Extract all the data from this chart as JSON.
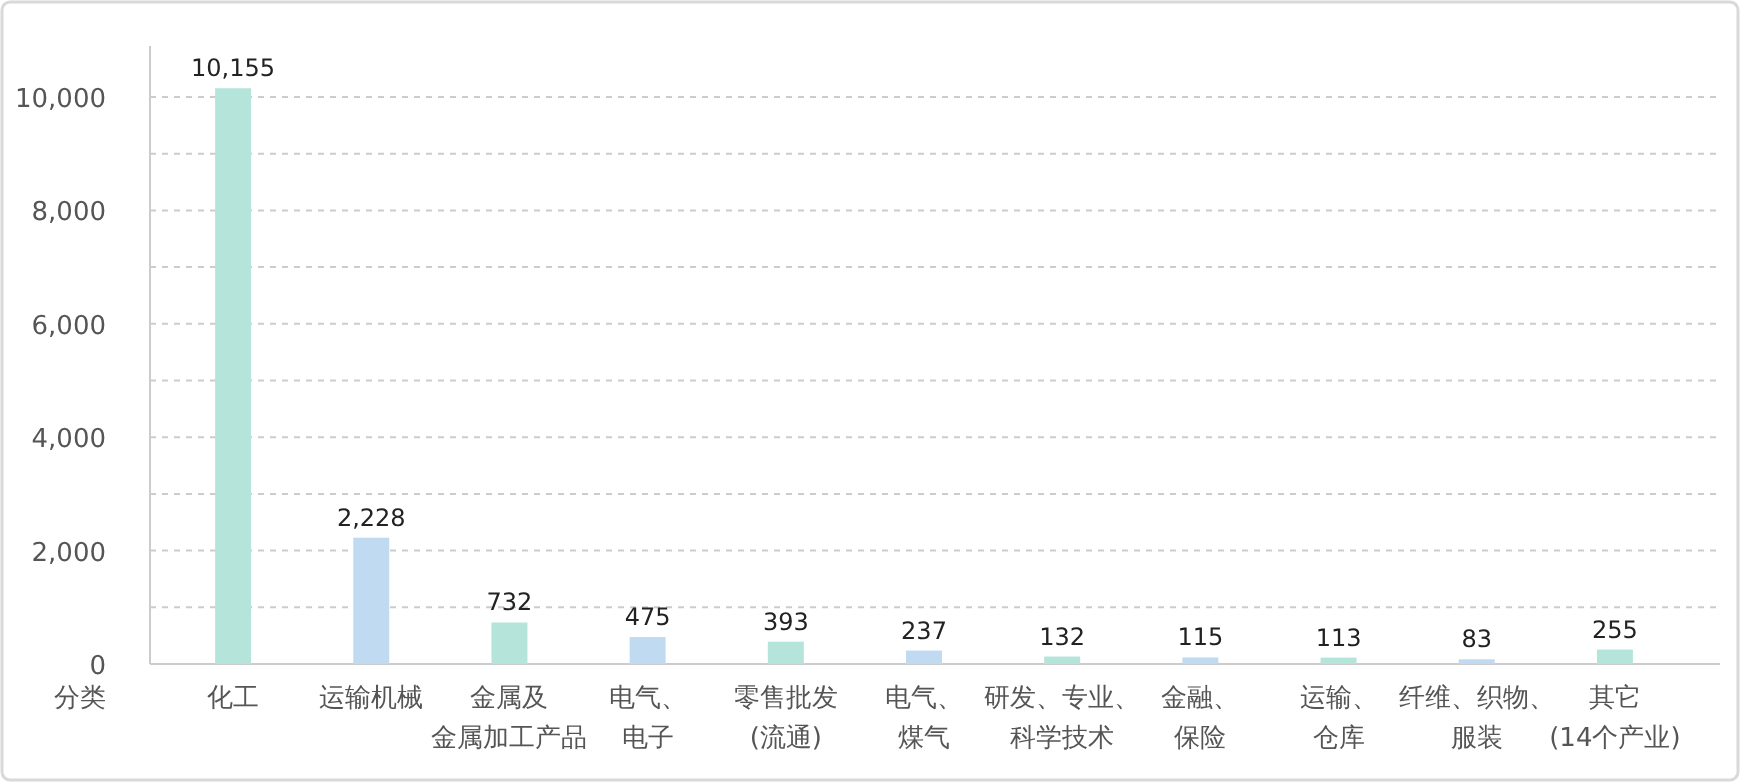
{
  "chart_data": {
    "type": "bar",
    "xlabel": "分类",
    "categories": [
      "化工",
      "运输机械",
      "金属及金属加工产品",
      "电气、电子",
      "零售批发(流通)",
      "电气、煤气",
      "研发、专业、科学技术",
      "金融、保险",
      "运输、仓库",
      "纤维、织物、服装",
      "其它(14个产业)"
    ],
    "values": [
      10155,
      2228,
      732,
      475,
      393,
      237,
      132,
      115,
      113,
      83,
      255
    ],
    "value_labels": [
      "10,155",
      "2,228",
      "732",
      "475",
      "393",
      "237",
      "132",
      "115",
      "113",
      "83",
      "255"
    ],
    "colors": [
      "#b5e5da",
      "#c0dbf1",
      "#b5e5da",
      "#c0dbf1",
      "#b5e5da",
      "#c0dbf1",
      "#b5e5da",
      "#c0dbf1",
      "#b5e5da",
      "#c0dbf1",
      "#b5e5da"
    ],
    "ylim": [
      0,
      10900
    ],
    "yticks": [
      0,
      {
        "value": 1000,
        "label": null
      },
      {
        "value": 2000,
        "label": "2,000"
      },
      {
        "value": 3000,
        "label": null
      },
      {
        "value": 4000,
        "label": "4,000"
      },
      {
        "value": 5000,
        "label": null
      },
      {
        "value": 6000,
        "label": "6,000"
      },
      {
        "value": 7000,
        "label": null
      },
      {
        "value": 8000,
        "label": "8,000"
      },
      {
        "value": 9000,
        "label": null
      },
      {
        "value": 10000,
        "label": "10,000"
      }
    ],
    "grid": "y"
  }
}
